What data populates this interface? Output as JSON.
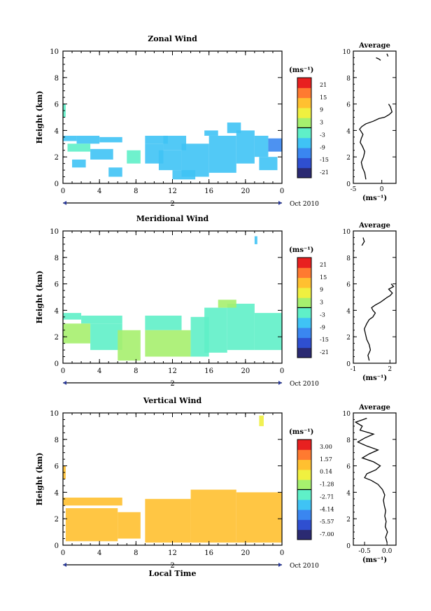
{
  "figure": {
    "panels": [
      {
        "title": "Zonal Wind",
        "ylabel": "Height (km)",
        "yticks": [
          "0",
          "2",
          "4",
          "6",
          "8",
          "10"
        ],
        "xticks": [
          "0",
          "4",
          "8",
          "12",
          "16",
          "20",
          "0"
        ],
        "day_label": "2",
        "date_label": "Oct 2010",
        "cb_unit": "(ms⁻¹)",
        "cb_ticks": [
          "21",
          "15",
          "9",
          "3",
          "-3",
          "-9",
          "-15",
          "-21"
        ],
        "avg_title": "Average",
        "avg_xticks": [
          "-5",
          "0"
        ],
        "avg_unit": "(ms⁻¹)"
      },
      {
        "title": "Meridional Wind",
        "ylabel": "Height (km)",
        "yticks": [
          "0",
          "2",
          "4",
          "6",
          "8",
          "10"
        ],
        "xticks": [
          "0",
          "4",
          "8",
          "12",
          "16",
          "20",
          "0"
        ],
        "day_label": "2",
        "date_label": "Oct 2010",
        "cb_unit": "(ms⁻¹)",
        "cb_ticks": [
          "21",
          "15",
          "9",
          "3",
          "-3",
          "-9",
          "-15",
          "-21"
        ],
        "avg_title": "Average",
        "avg_xticks": [
          "-1",
          "2"
        ],
        "avg_unit": "(ms⁻¹)"
      },
      {
        "title": "Vertical Wind",
        "ylabel": "Height (km)",
        "yticks": [
          "0",
          "2",
          "4",
          "6",
          "8",
          "10"
        ],
        "xticks": [
          "0",
          "4",
          "8",
          "12",
          "16",
          "20",
          "0"
        ],
        "day_label": "2",
        "date_label": "Oct 2010",
        "xlabel": "Local Time",
        "cb_unit": "(ms⁻¹)",
        "cb_ticks": [
          "3.00",
          "1.57",
          "0.14",
          "-1.28",
          "-2.71",
          "-4.14",
          "-5.57",
          "-7.00"
        ],
        "avg_title": "Average",
        "avg_xticks": [
          "-0.5",
          "0.0"
        ],
        "avg_unit": "(ms⁻¹)"
      }
    ]
  },
  "chart_data": [
    {
      "type": "heatmap",
      "title": "Zonal Wind",
      "xlabel": "",
      "ylabel": "Height (km)",
      "xlim": [
        0,
        24
      ],
      "ylim": [
        0,
        10
      ],
      "colorbar_range": [
        -21,
        21
      ],
      "colors": [
        "#2b2a72",
        "#2f4fd0",
        "#3a86f0",
        "#3fc3f5",
        "#5ff0c8",
        "#a6f06e",
        "#f0f040",
        "#ffc030",
        "#ff7a30",
        "#e82020"
      ],
      "cells": [
        {
          "t0": 0.0,
          "t1": 1.5,
          "h0": 3.2,
          "h1": 3.6,
          "v": -5
        },
        {
          "t0": 1.5,
          "t1": 4.0,
          "h0": 3.0,
          "h1": 3.6,
          "v": -6
        },
        {
          "t0": 4.0,
          "t1": 6.5,
          "h0": 3.1,
          "h1": 3.5,
          "v": -5
        },
        {
          "t0": 0.5,
          "t1": 3.0,
          "h0": 2.4,
          "h1": 3.0,
          "v": -4
        },
        {
          "t0": 3.0,
          "t1": 5.5,
          "h0": 1.8,
          "h1": 2.6,
          "v": -6
        },
        {
          "t0": 1.0,
          "t1": 2.5,
          "h0": 1.2,
          "h1": 1.8,
          "v": -5
        },
        {
          "t0": 5.0,
          "t1": 6.5,
          "h0": 0.5,
          "h1": 1.2,
          "v": -6
        },
        {
          "t0": 7.0,
          "t1": 8.5,
          "h0": 1.5,
          "h1": 2.5,
          "v": -4
        },
        {
          "t0": 9.0,
          "t1": 11.5,
          "h0": 3.0,
          "h1": 3.6,
          "v": -6
        },
        {
          "t0": 9.0,
          "t1": 11.0,
          "h0": 1.5,
          "h1": 3.0,
          "v": -7
        },
        {
          "t0": 11.0,
          "t1": 13.5,
          "h0": 2.5,
          "h1": 3.6,
          "v": -7
        },
        {
          "t0": 10.5,
          "t1": 13.0,
          "h0": 1.0,
          "h1": 2.5,
          "v": -8
        },
        {
          "t0": 13.0,
          "t1": 16.0,
          "h0": 0.5,
          "h1": 3.0,
          "v": -8
        },
        {
          "t0": 12.0,
          "t1": 14.5,
          "h0": 0.3,
          "h1": 1.0,
          "v": -7
        },
        {
          "t0": 16.0,
          "t1": 19.0,
          "h0": 0.8,
          "h1": 3.6,
          "v": -7
        },
        {
          "t0": 15.5,
          "t1": 17.0,
          "h0": 3.6,
          "h1": 4.0,
          "v": -5
        },
        {
          "t0": 18.0,
          "t1": 19.5,
          "h0": 3.8,
          "h1": 4.6,
          "v": -5
        },
        {
          "t0": 19.0,
          "t1": 21.0,
          "h0": 1.5,
          "h1": 4.0,
          "v": -7
        },
        {
          "t0": 21.0,
          "t1": 22.5,
          "h0": 2.0,
          "h1": 3.6,
          "v": -8
        },
        {
          "t0": 22.5,
          "t1": 24.0,
          "h0": 2.4,
          "h1": 3.4,
          "v": -10
        },
        {
          "t0": 21.5,
          "t1": 23.5,
          "h0": 1.0,
          "h1": 2.0,
          "v": -6
        },
        {
          "t0": 0.0,
          "t1": 0.3,
          "h0": 5.0,
          "h1": 6.0,
          "v": -2
        }
      ]
    },
    {
      "type": "heatmap",
      "title": "Meridional Wind",
      "xlabel": "",
      "ylabel": "Height (km)",
      "xlim": [
        0,
        24
      ],
      "ylim": [
        0,
        10
      ],
      "colorbar_range": [
        -21,
        21
      ],
      "colors": [
        "#2b2a72",
        "#2f4fd0",
        "#3a86f0",
        "#3fc3f5",
        "#5ff0c8",
        "#a6f06e",
        "#f0f040",
        "#ffc030",
        "#ff7a30",
        "#e82020"
      ],
      "cells": [
        {
          "t0": 0.0,
          "t1": 2.0,
          "h0": 3.3,
          "h1": 3.8,
          "v": -1
        },
        {
          "t0": 2.0,
          "t1": 6.5,
          "h0": 3.0,
          "h1": 3.6,
          "v": -1
        },
        {
          "t0": 0.0,
          "t1": 3.0,
          "h0": 1.5,
          "h1": 3.0,
          "v": 2
        },
        {
          "t0": 3.0,
          "t1": 6.5,
          "h0": 1.0,
          "h1": 3.0,
          "v": -1
        },
        {
          "t0": 6.0,
          "t1": 8.5,
          "h0": 0.2,
          "h1": 2.5,
          "v": 0
        },
        {
          "t0": 9.0,
          "t1": 13.0,
          "h0": 2.5,
          "h1": 3.6,
          "v": -1
        },
        {
          "t0": 9.0,
          "t1": 14.0,
          "h0": 0.5,
          "h1": 2.5,
          "v": 2
        },
        {
          "t0": 14.0,
          "t1": 16.0,
          "h0": 0.5,
          "h1": 3.5,
          "v": -3
        },
        {
          "t0": 15.5,
          "t1": 18.0,
          "h0": 0.8,
          "h1": 4.2,
          "v": -4
        },
        {
          "t0": 18.0,
          "t1": 21.0,
          "h0": 1.0,
          "h1": 4.5,
          "v": -2
        },
        {
          "t0": 21.0,
          "t1": 24.0,
          "h0": 1.0,
          "h1": 3.8,
          "v": -4
        },
        {
          "t0": 17.0,
          "t1": 19.0,
          "h0": 4.2,
          "h1": 4.8,
          "v": 0
        },
        {
          "t0": 21.0,
          "t1": 21.3,
          "h0": 9.0,
          "h1": 9.6,
          "v": -5
        }
      ]
    },
    {
      "type": "heatmap",
      "title": "Vertical Wind",
      "xlabel": "Local Time",
      "ylabel": "Height (km)",
      "xlim": [
        0,
        24
      ],
      "ylim": [
        0,
        10
      ],
      "colorbar_range": [
        -7.0,
        3.0
      ],
      "colors": [
        "#2b2a72",
        "#2f4fd0",
        "#3a86f0",
        "#3fc3f5",
        "#5ff0c8",
        "#a6f06e",
        "#f0f040",
        "#ffc030",
        "#ff7a30",
        "#e82020"
      ],
      "cells": [
        {
          "t0": 0.0,
          "t1": 6.5,
          "h0": 3.0,
          "h1": 3.6,
          "v": 0.2
        },
        {
          "t0": 0.3,
          "t1": 6.0,
          "h0": 0.3,
          "h1": 2.8,
          "v": 0.0
        },
        {
          "t0": 6.0,
          "t1": 8.5,
          "h0": 0.5,
          "h1": 2.5,
          "v": 0.1
        },
        {
          "t0": 9.0,
          "t1": 14.0,
          "h0": 0.2,
          "h1": 3.5,
          "v": 0.3
        },
        {
          "t0": 14.0,
          "t1": 19.0,
          "h0": 0.2,
          "h1": 4.2,
          "v": 0.5
        },
        {
          "t0": 19.0,
          "t1": 24.0,
          "h0": 0.2,
          "h1": 4.0,
          "v": 0.3
        },
        {
          "t0": 21.5,
          "t1": 22.0,
          "h0": 9.0,
          "h1": 9.8,
          "v": -0.3
        },
        {
          "t0": 0.0,
          "t1": 0.3,
          "h0": 5.0,
          "h1": 6.0,
          "v": 0.0
        }
      ]
    },
    {
      "type": "line",
      "title": "Average",
      "xlabel": "(ms⁻¹)",
      "ylabel": "Height (km)",
      "xlim": [
        -5,
        2.5
      ],
      "ylim": [
        0,
        10
      ],
      "segments": [
        {
          "x": [
            -2.8,
            -3.0,
            -3.4,
            -3.6,
            -3.2,
            -3.0,
            -3.4,
            -3.8,
            -3.6,
            -3.3,
            -3.6,
            -3.9,
            -3.5,
            -2.8,
            -1.5,
            -0.5,
            0.5,
            1.3,
            1.8,
            1.5,
            1.2
          ],
          "y": [
            0.3,
            0.8,
            1.2,
            1.6,
            2.0,
            2.4,
            2.8,
            3.1,
            3.4,
            3.7,
            3.9,
            4.1,
            4.3,
            4.5,
            4.7,
            4.9,
            5.0,
            5.2,
            5.4,
            5.8,
            6.0
          ]
        },
        {
          "x": [
            -1.0,
            -0.5,
            -0.2
          ],
          "y": [
            9.5,
            9.4,
            9.3
          ]
        },
        {
          "x": [
            0.9,
            1.1
          ],
          "y": [
            9.8,
            9.6
          ]
        }
      ]
    },
    {
      "type": "line",
      "title": "Average",
      "xlabel": "(ms⁻¹)",
      "ylabel": "Height (km)",
      "xlim": [
        -1,
        2.5
      ],
      "ylim": [
        0,
        10
      ],
      "segments": [
        {
          "x": [
            0.3,
            0.2,
            0.4,
            0.3,
            0.1,
            0.0,
            -0.1,
            0.1,
            0.3,
            0.6,
            0.8,
            0.6,
            0.5,
            0.8,
            1.2,
            1.5,
            1.8,
            2.0,
            2.2,
            1.9,
            2.3,
            2.1
          ],
          "y": [
            0.2,
            0.6,
            1.0,
            1.4,
            1.8,
            2.2,
            2.6,
            3.0,
            3.3,
            3.5,
            3.8,
            4.0,
            4.2,
            4.4,
            4.6,
            4.8,
            5.0,
            5.1,
            5.3,
            5.6,
            5.8,
            6.0
          ]
        },
        {
          "x": [
            -0.2,
            -0.1,
            -0.3
          ],
          "y": [
            9.5,
            9.2,
            8.9
          ]
        }
      ]
    },
    {
      "type": "line",
      "title": "Average",
      "xlabel": "(ms⁻¹)",
      "ylabel": "Height (km)",
      "xlim": [
        -0.75,
        0.2
      ],
      "ylim": [
        0,
        10
      ],
      "segments": [
        {
          "x": [
            0.0,
            -0.03,
            0.01,
            -0.04,
            -0.02,
            -0.05,
            -0.03,
            -0.06,
            -0.08,
            -0.05,
            -0.1,
            -0.2,
            -0.35,
            -0.5,
            -0.45,
            -0.25,
            -0.15,
            -0.3,
            -0.55,
            -0.4,
            -0.2,
            -0.45,
            -0.65,
            -0.5,
            -0.3,
            -0.6,
            -0.55,
            -0.7,
            -0.45
          ],
          "y": [
            0.2,
            0.6,
            1.0,
            1.4,
            1.8,
            2.2,
            2.6,
            3.0,
            3.4,
            3.8,
            4.2,
            4.6,
            4.9,
            5.1,
            5.4,
            5.7,
            6.0,
            6.3,
            6.6,
            6.9,
            7.2,
            7.5,
            7.8,
            8.1,
            8.4,
            8.7,
            9.0,
            9.3,
            9.6
          ]
        }
      ]
    }
  ]
}
